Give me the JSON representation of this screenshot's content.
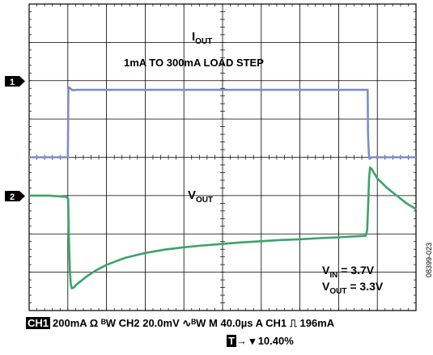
{
  "chart_data": {
    "type": "line",
    "title": "",
    "xlabel": "",
    "ylabel": "",
    "x_unit": "µs",
    "xlim": [
      0,
      400
    ],
    "ylim": [
      -4,
      4
    ],
    "grid": true,
    "grid_divisions": {
      "x": 10,
      "y": 8
    },
    "series": [
      {
        "name": "IOUT",
        "channel": "1",
        "color": "#7b8fc6",
        "points": [
          [
            0,
            0.0
          ],
          [
            40,
            0.0
          ],
          [
            40.6,
            1.75
          ],
          [
            41.5,
            1.82
          ],
          [
            45,
            1.75
          ],
          [
            50,
            1.76
          ],
          [
            100,
            1.76
          ],
          [
            200,
            1.76
          ],
          [
            300,
            1.76
          ],
          [
            349,
            1.76
          ],
          [
            350,
            1.76
          ],
          [
            350.4,
            0.6
          ],
          [
            351.2,
            0.1
          ],
          [
            352,
            -0.04
          ],
          [
            354,
            0.0
          ],
          [
            360,
            0.0
          ],
          [
            400,
            0.0
          ]
        ]
      },
      {
        "name": "VOUT",
        "channel": "2",
        "color": "#3aa36b",
        "points": [
          [
            0,
            -1.0
          ],
          [
            20,
            -1.0
          ],
          [
            38,
            -1.03
          ],
          [
            40.3,
            -1.08
          ],
          [
            41,
            -2.0
          ],
          [
            42,
            -2.9
          ],
          [
            43,
            -3.3
          ],
          [
            44,
            -3.42
          ],
          [
            46,
            -3.4
          ],
          [
            50,
            -3.3
          ],
          [
            60,
            -3.1
          ],
          [
            70,
            -2.94
          ],
          [
            80,
            -2.81
          ],
          [
            90,
            -2.71
          ],
          [
            100,
            -2.62
          ],
          [
            120,
            -2.5
          ],
          [
            140,
            -2.41
          ],
          [
            160,
            -2.35
          ],
          [
            180,
            -2.3
          ],
          [
            200,
            -2.26
          ],
          [
            220,
            -2.22
          ],
          [
            240,
            -2.19
          ],
          [
            260,
            -2.16
          ],
          [
            280,
            -2.14
          ],
          [
            300,
            -2.11
          ],
          [
            320,
            -2.09
          ],
          [
            340,
            -2.06
          ],
          [
            348,
            -2.05
          ],
          [
            349.5,
            -1.9
          ],
          [
            350.5,
            -1.3
          ],
          [
            351.5,
            -0.55
          ],
          [
            352.5,
            -0.27
          ],
          [
            354,
            -0.3
          ],
          [
            360,
            -0.55
          ],
          [
            370,
            -0.8
          ],
          [
            380,
            -1.0
          ],
          [
            390,
            -1.2
          ],
          [
            400,
            -1.35
          ]
        ]
      }
    ],
    "annotations": {
      "iout_label": "I",
      "iout_sub": "OUT",
      "load_step": "1mA TO 300mA LOAD STEP",
      "vout_label": "V",
      "vout_sub": "OUT",
      "vin_main": "V",
      "vin_sub": "IN",
      "vin_value": " = 3.7V",
      "vout2_main": "V",
      "vout2_sub": "OUT",
      "vout2_value": " = 3.3V"
    },
    "markers": {
      "ch1": "1",
      "ch2": "2"
    }
  },
  "status": {
    "ch1_tag": "CH1",
    "line1_text": "200mA Ω ᴮW  CH2 20.0mV ∿ᴮW  M 40.0µs  A  CH1 ⎍ 196mA",
    "t_tag": "T",
    "line2_text": "→ ▾ 10.40%"
  },
  "figure_id": "08399-023"
}
